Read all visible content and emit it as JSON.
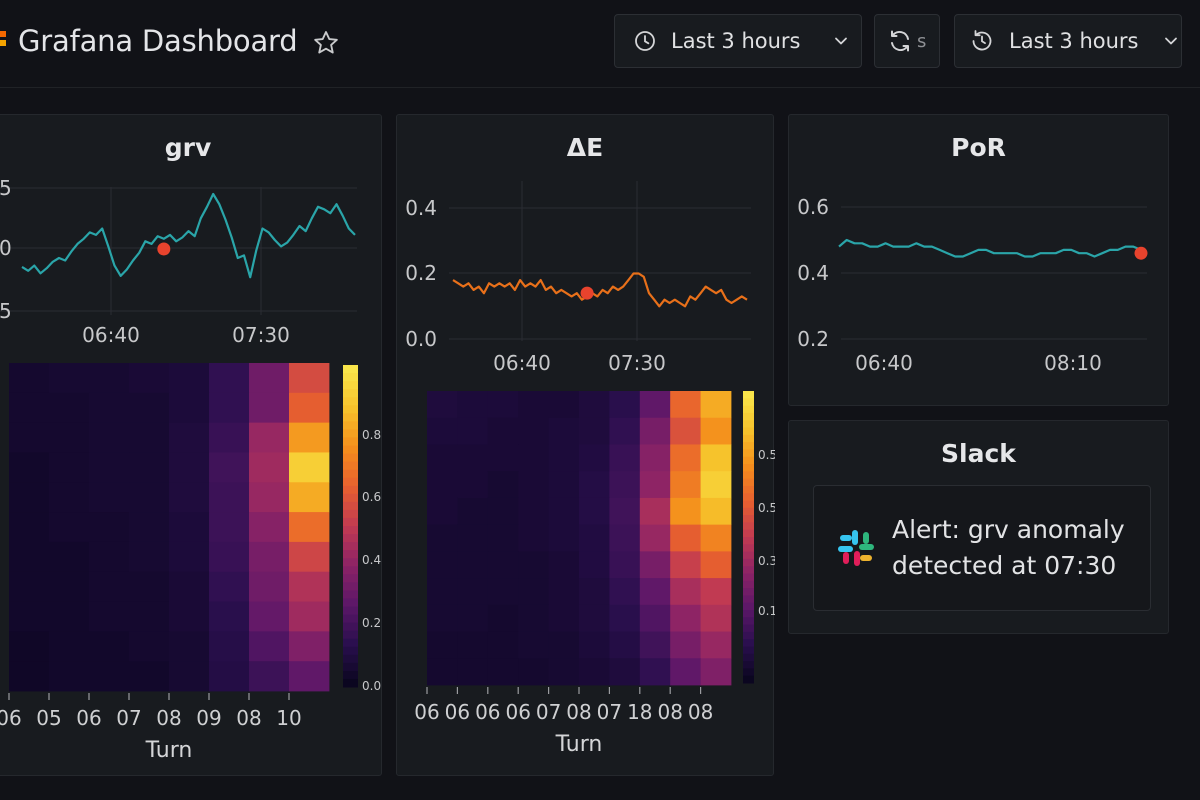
{
  "header": {
    "title": "Grafana Dashboard",
    "time_range_label": "Last 3 hours",
    "refresh_label": "s",
    "time_range_label_2": "Last 3 hours"
  },
  "colors": {
    "accent_orange": "#f46800",
    "line_teal": "#2aa5a9",
    "line_orange": "#e8701a",
    "marker_red": "#e8432d"
  },
  "panels": {
    "grv": {
      "title": "grv",
      "y_ticks": [
        "5",
        "0",
        "5"
      ],
      "x_ticks": [
        "06:40",
        "07:30"
      ]
    },
    "delta_e": {
      "title": "ΔE",
      "y_ticks": [
        "0.4",
        "0.2",
        "0.0"
      ],
      "x_ticks": [
        "06:40",
        "07:30"
      ]
    },
    "por": {
      "title": "PoR",
      "y_ticks": [
        "0.6",
        "0.4",
        "0.2"
      ],
      "x_ticks": [
        "06:40",
        "08:10"
      ]
    },
    "slack": {
      "title": "Slack",
      "message": "Alert: grv anomaly detected at 07:30"
    }
  },
  "chart_data": [
    {
      "id": "grv-timeseries",
      "type": "line",
      "title": "grv",
      "y_tick_labels": [
        "5",
        "0",
        "5"
      ],
      "x_tick_labels": [
        "06:40",
        "07:30"
      ],
      "ylim": [
        -5,
        5
      ],
      "series": [
        {
          "name": "grv",
          "color": "#2aa5a9",
          "values": [
            -1.4,
            -1.7,
            -1.3,
            -1.9,
            -1.5,
            -1.0,
            -0.7,
            -0.9,
            -0.2,
            0.4,
            0.8,
            1.3,
            1.1,
            1.6,
            0.2,
            -1.3,
            -2.1,
            -1.6,
            -0.9,
            -0.3,
            0.6,
            0.4,
            1.0,
            0.8,
            1.1,
            0.6,
            0.9,
            1.4,
            1.0,
            2.4,
            3.3,
            4.3,
            3.5,
            2.3,
            0.9,
            -0.7,
            -0.5,
            -2.2,
            -0.1,
            1.6,
            1.3,
            0.7,
            0.2,
            0.5,
            1.1,
            1.8,
            1.4,
            2.4,
            3.3,
            3.1,
            2.8,
            3.5,
            2.6,
            1.6,
            1.1
          ]
        }
      ],
      "markers": [
        {
          "index": 23,
          "value": 0.0
        }
      ]
    },
    {
      "id": "grv-heatmap",
      "type": "heatmap",
      "x_categories": [
        "06",
        "05",
        "06",
        "07",
        "08",
        "09",
        "08",
        "10"
      ],
      "xlabel": "Turn",
      "colorbar_ticks": [
        "0.8",
        "0.6",
        "0.4",
        "0.2",
        "0.0"
      ],
      "zlim": [
        0,
        1
      ],
      "rows": 11,
      "matrix": [
        [
          0.04,
          0.05,
          0.05,
          0.06,
          0.07,
          0.14,
          0.3,
          0.56
        ],
        [
          0.04,
          0.04,
          0.05,
          0.05,
          0.07,
          0.14,
          0.3,
          0.62
        ],
        [
          0.04,
          0.04,
          0.05,
          0.05,
          0.08,
          0.16,
          0.4,
          0.78
        ],
        [
          0.03,
          0.04,
          0.05,
          0.05,
          0.08,
          0.18,
          0.42,
          0.92
        ],
        [
          0.03,
          0.04,
          0.05,
          0.05,
          0.08,
          0.17,
          0.4,
          0.82
        ],
        [
          0.03,
          0.04,
          0.04,
          0.05,
          0.07,
          0.17,
          0.36,
          0.66
        ],
        [
          0.03,
          0.03,
          0.04,
          0.05,
          0.07,
          0.16,
          0.32,
          0.54
        ],
        [
          0.03,
          0.03,
          0.04,
          0.04,
          0.06,
          0.14,
          0.3,
          0.46
        ],
        [
          0.03,
          0.03,
          0.04,
          0.04,
          0.06,
          0.12,
          0.27,
          0.42
        ],
        [
          0.02,
          0.03,
          0.03,
          0.04,
          0.05,
          0.11,
          0.22,
          0.34
        ],
        [
          0.02,
          0.03,
          0.03,
          0.03,
          0.05,
          0.1,
          0.17,
          0.26
        ]
      ]
    },
    {
      "id": "delta-e-timeseries",
      "type": "line",
      "title": "ΔE",
      "y_tick_labels": [
        "0.4",
        "0.2",
        "0.0"
      ],
      "x_tick_labels": [
        "06:40",
        "07:30"
      ],
      "ylim": [
        0.0,
        0.4
      ],
      "series": [
        {
          "name": "ΔE",
          "color": "#e8701a",
          "values": [
            0.18,
            0.17,
            0.16,
            0.17,
            0.15,
            0.16,
            0.14,
            0.17,
            0.16,
            0.17,
            0.16,
            0.17,
            0.15,
            0.18,
            0.16,
            0.17,
            0.16,
            0.18,
            0.15,
            0.16,
            0.14,
            0.15,
            0.14,
            0.13,
            0.14,
            0.12,
            0.13,
            0.14,
            0.13,
            0.15,
            0.14,
            0.16,
            0.15,
            0.16,
            0.18,
            0.2,
            0.2,
            0.19,
            0.14,
            0.12,
            0.1,
            0.12,
            0.11,
            0.12,
            0.11,
            0.1,
            0.13,
            0.12,
            0.14,
            0.16,
            0.15,
            0.14,
            0.15,
            0.12,
            0.11,
            0.12,
            0.13,
            0.12
          ]
        }
      ],
      "markers": [
        {
          "index": 26,
          "value": 0.14
        }
      ]
    },
    {
      "id": "delta-e-heatmap",
      "type": "heatmap",
      "x_categories": [
        "06",
        "06",
        "06",
        "06",
        "07",
        "08",
        "07",
        "18",
        "08",
        "08"
      ],
      "xlabel": "Turn",
      "colorbar_ticks": [
        "0.5",
        "0.5",
        "0.3",
        "0.1"
      ],
      "zlim": [
        0,
        1
      ],
      "rows": 11,
      "matrix": [
        [
          0.08,
          0.07,
          0.07,
          0.06,
          0.06,
          0.08,
          0.12,
          0.26,
          0.64,
          0.82
        ],
        [
          0.07,
          0.07,
          0.06,
          0.06,
          0.07,
          0.08,
          0.14,
          0.32,
          0.58,
          0.76
        ],
        [
          0.06,
          0.06,
          0.06,
          0.06,
          0.07,
          0.09,
          0.16,
          0.36,
          0.66,
          0.88
        ],
        [
          0.06,
          0.06,
          0.05,
          0.06,
          0.07,
          0.1,
          0.17,
          0.38,
          0.7,
          0.92
        ],
        [
          0.06,
          0.05,
          0.05,
          0.06,
          0.07,
          0.1,
          0.18,
          0.44,
          0.76,
          0.86
        ],
        [
          0.05,
          0.05,
          0.05,
          0.06,
          0.07,
          0.09,
          0.17,
          0.4,
          0.62,
          0.72
        ],
        [
          0.05,
          0.05,
          0.05,
          0.05,
          0.06,
          0.09,
          0.16,
          0.32,
          0.52,
          0.62
        ],
        [
          0.05,
          0.05,
          0.05,
          0.05,
          0.06,
          0.08,
          0.14,
          0.26,
          0.44,
          0.5
        ],
        [
          0.05,
          0.05,
          0.04,
          0.05,
          0.06,
          0.08,
          0.12,
          0.22,
          0.38,
          0.46
        ],
        [
          0.04,
          0.04,
          0.04,
          0.05,
          0.05,
          0.07,
          0.1,
          0.18,
          0.32,
          0.4
        ],
        [
          0.04,
          0.04,
          0.04,
          0.04,
          0.05,
          0.06,
          0.08,
          0.14,
          0.26,
          0.34
        ]
      ]
    },
    {
      "id": "por-timeseries",
      "type": "line",
      "title": "PoR",
      "y_tick_labels": [
        "0.6",
        "0.4",
        "0.2"
      ],
      "x_tick_labels": [
        "06:40",
        "08:10"
      ],
      "ylim": [
        0.2,
        0.6
      ],
      "series": [
        {
          "name": "PoR",
          "color": "#2aa5a9",
          "values": [
            0.48,
            0.5,
            0.49,
            0.49,
            0.48,
            0.48,
            0.49,
            0.48,
            0.48,
            0.48,
            0.49,
            0.48,
            0.48,
            0.47,
            0.46,
            0.45,
            0.45,
            0.46,
            0.47,
            0.47,
            0.46,
            0.46,
            0.46,
            0.46,
            0.45,
            0.45,
            0.46,
            0.46,
            0.46,
            0.47,
            0.47,
            0.46,
            0.46,
            0.45,
            0.46,
            0.47,
            0.47,
            0.48,
            0.48,
            0.47
          ]
        }
      ],
      "markers": [
        {
          "index": 39,
          "value": 0.46
        }
      ]
    }
  ]
}
